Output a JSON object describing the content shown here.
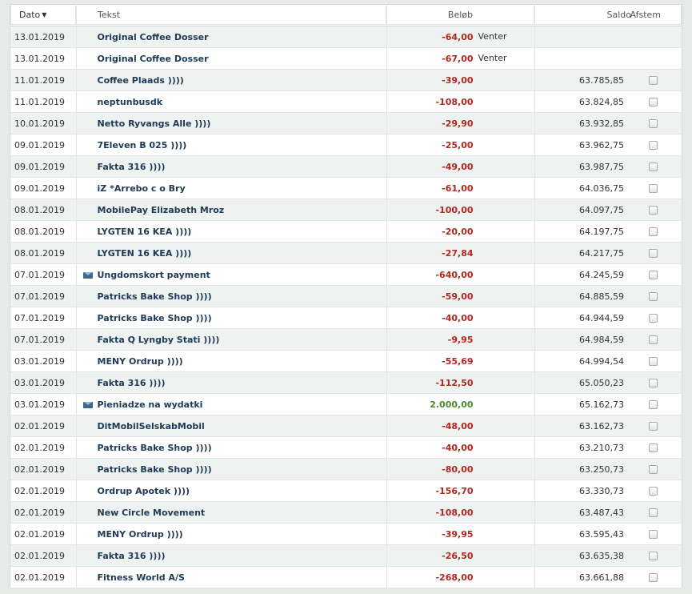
{
  "header": {
    "date": "Dato",
    "text": "Tekst",
    "amount": "Beløb",
    "balance": "Saldo",
    "reconcile": "Afstem"
  },
  "rows": [
    {
      "date": "13.01.2019",
      "text": "Original Coffee Dosser",
      "amount": "-64,00",
      "status": "Venter",
      "balance": "",
      "mail": false,
      "checkbox": false,
      "positive": false
    },
    {
      "date": "13.01.2019",
      "text": "Original Coffee Dosser",
      "amount": "-67,00",
      "status": "Venter",
      "balance": "",
      "mail": false,
      "checkbox": false,
      "positive": false
    },
    {
      "date": "11.01.2019",
      "text": "Coffee Plaads ))))",
      "amount": "-39,00",
      "status": "",
      "balance": "63.785,85",
      "mail": false,
      "checkbox": true,
      "positive": false
    },
    {
      "date": "11.01.2019",
      "text": "neptunbusdk",
      "amount": "-108,00",
      "status": "",
      "balance": "63.824,85",
      "mail": false,
      "checkbox": true,
      "positive": false
    },
    {
      "date": "10.01.2019",
      "text": "Netto Ryvangs Alle ))))",
      "amount": "-29,90",
      "status": "",
      "balance": "63.932,85",
      "mail": false,
      "checkbox": true,
      "positive": false
    },
    {
      "date": "09.01.2019",
      "text": "7Eleven B 025 ))))",
      "amount": "-25,00",
      "status": "",
      "balance": "63.962,75",
      "mail": false,
      "checkbox": true,
      "positive": false
    },
    {
      "date": "09.01.2019",
      "text": "Fakta 316 ))))",
      "amount": "-49,00",
      "status": "",
      "balance": "63.987,75",
      "mail": false,
      "checkbox": true,
      "positive": false
    },
    {
      "date": "09.01.2019",
      "text": "iZ *Arrebo c o Bry",
      "amount": "-61,00",
      "status": "",
      "balance": "64.036,75",
      "mail": false,
      "checkbox": true,
      "positive": false
    },
    {
      "date": "08.01.2019",
      "text": "MobilePay Elizabeth Mroz",
      "amount": "-100,00",
      "status": "",
      "balance": "64.097,75",
      "mail": false,
      "checkbox": true,
      "positive": false
    },
    {
      "date": "08.01.2019",
      "text": "LYGTEN 16 KEA ))))",
      "amount": "-20,00",
      "status": "",
      "balance": "64.197,75",
      "mail": false,
      "checkbox": true,
      "positive": false
    },
    {
      "date": "08.01.2019",
      "text": "LYGTEN 16 KEA ))))",
      "amount": "-27,84",
      "status": "",
      "balance": "64.217,75",
      "mail": false,
      "checkbox": true,
      "positive": false
    },
    {
      "date": "07.01.2019",
      "text": "Ungdomskort payment",
      "amount": "-640,00",
      "status": "",
      "balance": "64.245,59",
      "mail": true,
      "checkbox": true,
      "positive": false
    },
    {
      "date": "07.01.2019",
      "text": "Patricks Bake Shop ))))",
      "amount": "-59,00",
      "status": "",
      "balance": "64.885,59",
      "mail": false,
      "checkbox": true,
      "positive": false
    },
    {
      "date": "07.01.2019",
      "text": "Patricks Bake Shop ))))",
      "amount": "-40,00",
      "status": "",
      "balance": "64.944,59",
      "mail": false,
      "checkbox": true,
      "positive": false
    },
    {
      "date": "07.01.2019",
      "text": "Fakta Q Lyngby Stati ))))",
      "amount": "-9,95",
      "status": "",
      "balance": "64.984,59",
      "mail": false,
      "checkbox": true,
      "positive": false
    },
    {
      "date": "03.01.2019",
      "text": "MENY Ordrup ))))",
      "amount": "-55,69",
      "status": "",
      "balance": "64.994,54",
      "mail": false,
      "checkbox": true,
      "positive": false
    },
    {
      "date": "03.01.2019",
      "text": "Fakta 316 ))))",
      "amount": "-112,50",
      "status": "",
      "balance": "65.050,23",
      "mail": false,
      "checkbox": true,
      "positive": false
    },
    {
      "date": "03.01.2019",
      "text": "Pieniadze na wydatki",
      "amount": "2.000,00",
      "status": "",
      "balance": "65.162,73",
      "mail": true,
      "checkbox": true,
      "positive": true
    },
    {
      "date": "02.01.2019",
      "text": "DitMobilSelskabMobil",
      "amount": "-48,00",
      "status": "",
      "balance": "63.162,73",
      "mail": false,
      "checkbox": true,
      "positive": false
    },
    {
      "date": "02.01.2019",
      "text": "Patricks Bake Shop ))))",
      "amount": "-40,00",
      "status": "",
      "balance": "63.210,73",
      "mail": false,
      "checkbox": true,
      "positive": false
    },
    {
      "date": "02.01.2019",
      "text": "Patricks Bake Shop ))))",
      "amount": "-80,00",
      "status": "",
      "balance": "63.250,73",
      "mail": false,
      "checkbox": true,
      "positive": false
    },
    {
      "date": "02.01.2019",
      "text": "Ordrup Apotek ))))",
      "amount": "-156,70",
      "status": "",
      "balance": "63.330,73",
      "mail": false,
      "checkbox": true,
      "positive": false
    },
    {
      "date": "02.01.2019",
      "text": "New Circle Movement",
      "amount": "-108,00",
      "status": "",
      "balance": "63.487,43",
      "mail": false,
      "checkbox": true,
      "positive": false
    },
    {
      "date": "02.01.2019",
      "text": "MENY Ordrup ))))",
      "amount": "-39,95",
      "status": "",
      "balance": "63.595,43",
      "mail": false,
      "checkbox": true,
      "positive": false
    },
    {
      "date": "02.01.2019",
      "text": "Fakta 316 ))))",
      "amount": "-26,50",
      "status": "",
      "balance": "63.635,38",
      "mail": false,
      "checkbox": true,
      "positive": false
    },
    {
      "date": "02.01.2019",
      "text": "Fitness World A/S",
      "amount": "-268,00",
      "status": "",
      "balance": "63.661,88",
      "mail": false,
      "checkbox": true,
      "positive": false
    }
  ],
  "icons": {
    "sort": "sort-desc-icon",
    "mail": "envelope-icon"
  },
  "colors": {
    "negative": "#b3261e",
    "positive": "#4c8c2b",
    "text_link": "#1e3a55"
  }
}
